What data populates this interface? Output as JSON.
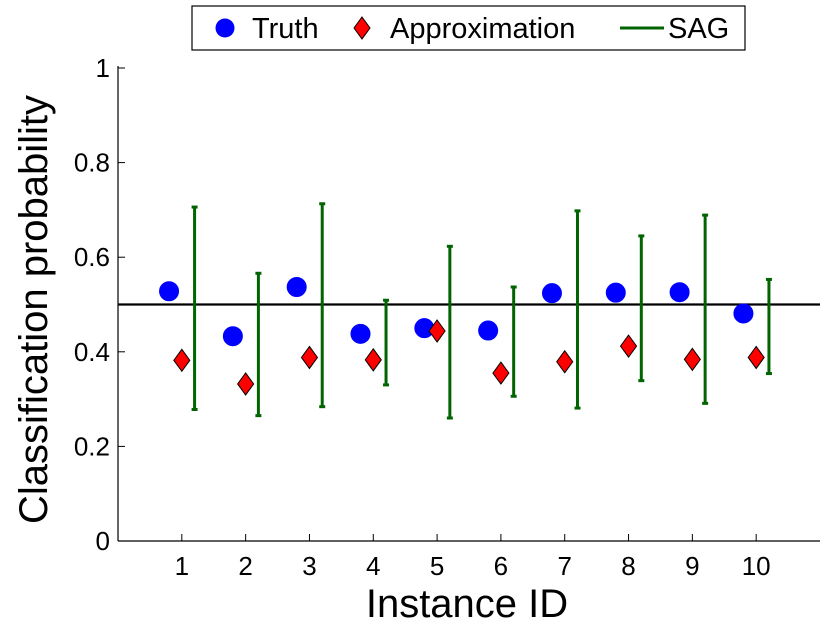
{
  "chart_data": {
    "type": "scatter",
    "xlabel": "Instance ID",
    "ylabel": "Classification probability",
    "xlim": [
      0,
      11
    ],
    "ylim": [
      0,
      1
    ],
    "x_ticks": [
      1,
      2,
      3,
      4,
      5,
      6,
      7,
      8,
      9,
      10
    ],
    "y_ticks": [
      0,
      0.2,
      0.4,
      0.6,
      0.8,
      1
    ],
    "y_tick_labels": [
      "0",
      "0.2",
      "0.4",
      "0.6",
      "0.8",
      "1"
    ],
    "threshold": 0.5,
    "legend": {
      "position": "top-center",
      "entries": [
        "Truth",
        "Approximation",
        "SAG"
      ]
    },
    "series": [
      {
        "name": "Truth",
        "marker": "circle",
        "color": "#0000ff",
        "x_offset": -0.2,
        "values": [
          0.528,
          0.433,
          0.537,
          0.438,
          0.45,
          0.445,
          0.524,
          0.525,
          0.526,
          0.481
        ]
      },
      {
        "name": "Approximation",
        "marker": "diamond",
        "color": "#ff0000",
        "x_offset": 0,
        "values": [
          0.382,
          0.332,
          0.388,
          0.383,
          0.444,
          0.355,
          0.379,
          0.412,
          0.384,
          0.388
        ]
      },
      {
        "name": "SAG",
        "marker": "errorbar",
        "color": "#006400",
        "x_offset": 0.2,
        "low": [
          0.278,
          0.265,
          0.284,
          0.33,
          0.26,
          0.306,
          0.281,
          0.339,
          0.291,
          0.354
        ],
        "high": [
          0.706,
          0.566,
          0.713,
          0.509,
          0.623,
          0.537,
          0.698,
          0.645,
          0.689,
          0.553
        ]
      }
    ]
  }
}
